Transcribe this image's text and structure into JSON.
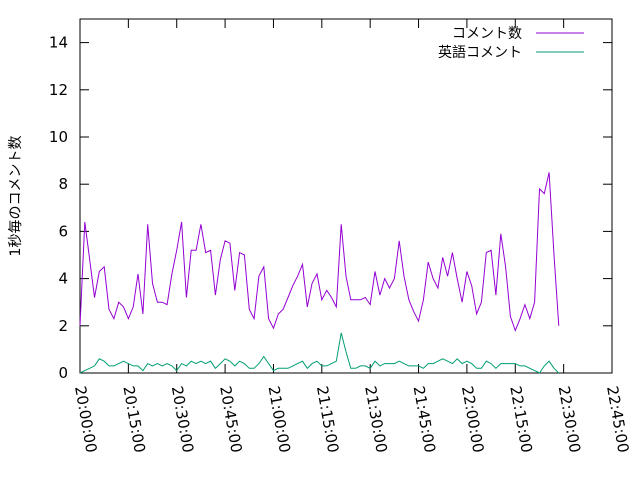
{
  "chart_data": {
    "type": "line",
    "title": "",
    "xlabel": "",
    "ylabel": "1秒毎のコメント数",
    "x_ticks": [
      "20:00:00",
      "20:15:00",
      "20:30:00",
      "20:45:00",
      "21:00:00",
      "21:15:00",
      "21:30:00",
      "21:45:00",
      "22:00:00",
      "22:15:00",
      "22:30:00",
      "22:45:00"
    ],
    "xlim": [
      "20:00:00",
      "22:45:00"
    ],
    "ylim": [
      0,
      15
    ],
    "y_ticks": [
      0,
      2,
      4,
      6,
      8,
      10,
      12,
      14
    ],
    "grid": false,
    "legend_position": "top-right",
    "series": [
      {
        "name": "コメント数",
        "color": "#9400d3",
        "points": [
          [
            "20:00:00",
            2.0
          ],
          [
            "20:01:30",
            6.4
          ],
          [
            "20:03:00",
            4.8
          ],
          [
            "20:04:30",
            3.2
          ],
          [
            "20:06:00",
            4.3
          ],
          [
            "20:07:30",
            4.5
          ],
          [
            "20:09:00",
            2.7
          ],
          [
            "20:10:30",
            2.3
          ],
          [
            "20:12:00",
            3.0
          ],
          [
            "20:13:30",
            2.8
          ],
          [
            "20:15:00",
            2.3
          ],
          [
            "20:16:30",
            2.8
          ],
          [
            "20:18:00",
            4.2
          ],
          [
            "20:19:30",
            2.5
          ],
          [
            "20:21:00",
            6.3
          ],
          [
            "20:22:30",
            3.8
          ],
          [
            "20:24:00",
            3.0
          ],
          [
            "20:25:30",
            3.0
          ],
          [
            "20:27:00",
            2.9
          ],
          [
            "20:28:30",
            4.2
          ],
          [
            "20:30:00",
            5.2
          ],
          [
            "20:31:30",
            6.4
          ],
          [
            "20:33:00",
            3.2
          ],
          [
            "20:34:30",
            5.2
          ],
          [
            "20:36:00",
            5.2
          ],
          [
            "20:37:30",
            6.3
          ],
          [
            "20:39:00",
            5.1
          ],
          [
            "20:40:30",
            5.2
          ],
          [
            "20:42:00",
            3.3
          ],
          [
            "20:43:30",
            4.8
          ],
          [
            "20:45:00",
            5.6
          ],
          [
            "20:46:30",
            5.5
          ],
          [
            "20:48:00",
            3.5
          ],
          [
            "20:49:30",
            5.1
          ],
          [
            "20:51:00",
            5.0
          ],
          [
            "20:52:30",
            2.7
          ],
          [
            "20:54:00",
            2.3
          ],
          [
            "20:55:30",
            4.1
          ],
          [
            "20:57:00",
            4.5
          ],
          [
            "20:58:30",
            2.3
          ],
          [
            "21:00:00",
            1.9
          ],
          [
            "21:01:30",
            2.5
          ],
          [
            "21:03:00",
            2.7
          ],
          [
            "21:04:30",
            3.2
          ],
          [
            "21:06:00",
            3.7
          ],
          [
            "21:07:30",
            4.1
          ],
          [
            "21:09:00",
            4.6
          ],
          [
            "21:10:30",
            2.8
          ],
          [
            "21:12:00",
            3.8
          ],
          [
            "21:13:30",
            4.2
          ],
          [
            "21:15:00",
            3.1
          ],
          [
            "21:16:30",
            3.5
          ],
          [
            "21:18:00",
            3.2
          ],
          [
            "21:19:30",
            2.8
          ],
          [
            "21:21:00",
            6.3
          ],
          [
            "21:22:30",
            4.1
          ],
          [
            "21:24:00",
            3.1
          ],
          [
            "21:25:30",
            3.1
          ],
          [
            "21:27:00",
            3.1
          ],
          [
            "21:28:30",
            3.2
          ],
          [
            "21:30:00",
            2.9
          ],
          [
            "21:31:30",
            4.3
          ],
          [
            "21:33:00",
            3.3
          ],
          [
            "21:34:30",
            4.0
          ],
          [
            "21:36:00",
            3.6
          ],
          [
            "21:37:30",
            4.0
          ],
          [
            "21:39:00",
            5.6
          ],
          [
            "21:40:30",
            4.1
          ],
          [
            "21:42:00",
            3.1
          ],
          [
            "21:43:30",
            2.6
          ],
          [
            "21:45:00",
            2.2
          ],
          [
            "21:46:30",
            3.1
          ],
          [
            "21:48:00",
            4.7
          ],
          [
            "21:49:30",
            4.0
          ],
          [
            "21:51:00",
            3.6
          ],
          [
            "21:52:30",
            4.9
          ],
          [
            "21:54:00",
            4.1
          ],
          [
            "21:55:30",
            5.1
          ],
          [
            "21:57:00",
            4.0
          ],
          [
            "21:58:30",
            3.0
          ],
          [
            "22:00:00",
            4.3
          ],
          [
            "22:01:30",
            3.7
          ],
          [
            "22:03:00",
            2.5
          ],
          [
            "22:04:30",
            3.0
          ],
          [
            "22:06:00",
            5.1
          ],
          [
            "22:07:30",
            5.2
          ],
          [
            "22:09:00",
            3.3
          ],
          [
            "22:10:30",
            5.9
          ],
          [
            "22:12:00",
            4.5
          ],
          [
            "22:13:30",
            2.4
          ],
          [
            "22:15:00",
            1.8
          ],
          [
            "22:16:30",
            2.3
          ],
          [
            "22:18:00",
            2.9
          ],
          [
            "22:19:30",
            2.3
          ],
          [
            "22:21:00",
            3.0
          ],
          [
            "22:22:30",
            7.8
          ],
          [
            "22:24:00",
            7.6
          ],
          [
            "22:25:30",
            8.5
          ],
          [
            "22:27:00",
            5.0
          ],
          [
            "22:28:30",
            2.0
          ]
        ]
      },
      {
        "name": "英語コメント",
        "color": "#009e73",
        "points": [
          [
            "20:00:00",
            0.0
          ],
          [
            "20:01:30",
            0.1
          ],
          [
            "20:03:00",
            0.2
          ],
          [
            "20:04:30",
            0.3
          ],
          [
            "20:06:00",
            0.6
          ],
          [
            "20:07:30",
            0.5
          ],
          [
            "20:09:00",
            0.3
          ],
          [
            "20:10:30",
            0.3
          ],
          [
            "20:12:00",
            0.4
          ],
          [
            "20:13:30",
            0.5
          ],
          [
            "20:15:00",
            0.4
          ],
          [
            "20:16:30",
            0.3
          ],
          [
            "20:18:00",
            0.3
          ],
          [
            "20:19:30",
            0.1
          ],
          [
            "20:21:00",
            0.4
          ],
          [
            "20:22:30",
            0.3
          ],
          [
            "20:24:00",
            0.4
          ],
          [
            "20:25:30",
            0.3
          ],
          [
            "20:27:00",
            0.4
          ],
          [
            "20:28:30",
            0.3
          ],
          [
            "20:30:00",
            0.1
          ],
          [
            "20:31:30",
            0.4
          ],
          [
            "20:33:00",
            0.3
          ],
          [
            "20:34:30",
            0.5
          ],
          [
            "20:36:00",
            0.4
          ],
          [
            "20:37:30",
            0.5
          ],
          [
            "20:39:00",
            0.4
          ],
          [
            "20:40:30",
            0.5
          ],
          [
            "20:42:00",
            0.2
          ],
          [
            "20:43:30",
            0.4
          ],
          [
            "20:45:00",
            0.6
          ],
          [
            "20:46:30",
            0.5
          ],
          [
            "20:48:00",
            0.3
          ],
          [
            "20:49:30",
            0.5
          ],
          [
            "20:51:00",
            0.4
          ],
          [
            "20:52:30",
            0.2
          ],
          [
            "20:54:00",
            0.2
          ],
          [
            "20:55:30",
            0.4
          ],
          [
            "20:57:00",
            0.7
          ],
          [
            "20:58:30",
            0.4
          ],
          [
            "21:00:00",
            0.1
          ],
          [
            "21:01:30",
            0.2
          ],
          [
            "21:03:00",
            0.2
          ],
          [
            "21:04:30",
            0.2
          ],
          [
            "21:06:00",
            0.3
          ],
          [
            "21:07:30",
            0.4
          ],
          [
            "21:09:00",
            0.5
          ],
          [
            "21:10:30",
            0.2
          ],
          [
            "21:12:00",
            0.4
          ],
          [
            "21:13:30",
            0.5
          ],
          [
            "21:15:00",
            0.3
          ],
          [
            "21:16:30",
            0.3
          ],
          [
            "21:18:00",
            0.4
          ],
          [
            "21:19:30",
            0.5
          ],
          [
            "21:21:00",
            1.7
          ],
          [
            "21:22:30",
            0.9
          ],
          [
            "21:24:00",
            0.2
          ],
          [
            "21:25:30",
            0.2
          ],
          [
            "21:27:00",
            0.3
          ],
          [
            "21:28:30",
            0.3
          ],
          [
            "21:30:00",
            0.2
          ],
          [
            "21:31:30",
            0.5
          ],
          [
            "21:33:00",
            0.3
          ],
          [
            "21:34:30",
            0.4
          ],
          [
            "21:36:00",
            0.4
          ],
          [
            "21:37:30",
            0.4
          ],
          [
            "21:39:00",
            0.5
          ],
          [
            "21:40:30",
            0.4
          ],
          [
            "21:42:00",
            0.3
          ],
          [
            "21:43:30",
            0.3
          ],
          [
            "21:45:00",
            0.3
          ],
          [
            "21:46:30",
            0.2
          ],
          [
            "21:48:00",
            0.4
          ],
          [
            "21:49:30",
            0.4
          ],
          [
            "21:51:00",
            0.5
          ],
          [
            "21:52:30",
            0.6
          ],
          [
            "21:54:00",
            0.5
          ],
          [
            "21:55:30",
            0.4
          ],
          [
            "21:57:00",
            0.6
          ],
          [
            "21:58:30",
            0.4
          ],
          [
            "22:00:00",
            0.5
          ],
          [
            "22:01:30",
            0.4
          ],
          [
            "22:03:00",
            0.2
          ],
          [
            "22:04:30",
            0.2
          ],
          [
            "22:06:00",
            0.5
          ],
          [
            "22:07:30",
            0.4
          ],
          [
            "22:09:00",
            0.2
          ],
          [
            "22:10:30",
            0.4
          ],
          [
            "22:12:00",
            0.4
          ],
          [
            "22:13:30",
            0.4
          ],
          [
            "22:15:00",
            0.4
          ],
          [
            "22:16:30",
            0.3
          ],
          [
            "22:18:00",
            0.3
          ],
          [
            "22:19:30",
            0.2
          ],
          [
            "22:21:00",
            0.1
          ],
          [
            "22:22:30",
            0.0
          ],
          [
            "22:24:00",
            0.3
          ],
          [
            "22:25:30",
            0.5
          ],
          [
            "22:27:00",
            0.2
          ],
          [
            "22:28:30",
            0.0
          ]
        ]
      }
    ]
  }
}
